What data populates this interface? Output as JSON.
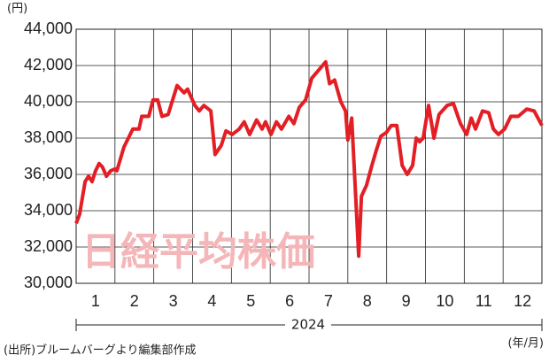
{
  "chart_data": {
    "type": "line",
    "y_label": "(円)",
    "x_label": "2024",
    "x_unit": "(年/月)",
    "source": "(出所)ブルームバーグより編集部作成",
    "annotation": "日経平均株価",
    "grid": true,
    "xlim": [
      0.5,
      12.5
    ],
    "xticks": [
      1,
      2,
      3,
      4,
      5,
      6,
      7,
      8,
      9,
      10,
      11,
      12
    ],
    "ylim": [
      30000,
      44000
    ],
    "yticks": [
      {
        "value": 30000,
        "label": "30,000"
      },
      {
        "value": 32000,
        "label": "32,000"
      },
      {
        "value": 34000,
        "label": "34,000"
      },
      {
        "value": 36000,
        "label": "36,000"
      },
      {
        "value": 38000,
        "label": "38,000"
      },
      {
        "value": 40000,
        "label": "40,000"
      },
      {
        "value": 42000,
        "label": "42,000"
      },
      {
        "value": 44000,
        "label": "44,000"
      }
    ],
    "x": [
      0.5,
      0.59,
      0.73,
      0.82,
      0.91,
      1.0,
      1.09,
      1.18,
      1.28,
      1.39,
      1.5,
      1.55,
      1.73,
      1.96,
      2.12,
      2.19,
      2.37,
      2.48,
      2.6,
      2.71,
      2.87,
      3.1,
      3.28,
      3.37,
      3.56,
      3.67,
      3.79,
      3.97,
      4.08,
      4.24,
      4.36,
      4.52,
      4.7,
      4.83,
      4.97,
      5.15,
      5.29,
      5.38,
      5.52,
      5.66,
      5.79,
      5.98,
      6.11,
      6.25,
      6.41,
      6.57,
      6.93,
      7.03,
      7.16,
      7.32,
      7.44,
      7.5,
      7.6,
      7.78,
      7.85,
      7.98,
      8.12,
      8.23,
      8.35,
      8.49,
      8.62,
      8.76,
      8.9,
      9.03,
      9.17,
      9.26,
      9.35,
      9.44,
      9.58,
      9.72,
      9.85,
      10.06,
      10.22,
      10.4,
      10.56,
      10.68,
      10.79,
      10.97,
      11.13,
      11.25,
      11.38,
      11.54,
      11.7,
      11.89,
      12.11,
      12.3,
      12.5
    ],
    "series": [
      {
        "color": "#e31e24",
        "values": [
          33300,
          33800,
          35600,
          35900,
          35600,
          36200,
          36600,
          36400,
          35900,
          36200,
          36300,
          36200,
          37500,
          38500,
          38500,
          39200,
          39200,
          40100,
          40100,
          39200,
          39300,
          40900,
          40500,
          40700,
          39800,
          39500,
          39800,
          39500,
          37100,
          37600,
          38400,
          38200,
          38500,
          38900,
          38200,
          39000,
          38500,
          38900,
          38200,
          38900,
          38500,
          39200,
          38800,
          39700,
          40100,
          41300,
          42200,
          41000,
          41200,
          40000,
          39500,
          37900,
          39100,
          31500,
          34800,
          35400,
          36500,
          37300,
          38100,
          38300,
          38700,
          38700,
          36500,
          36000,
          36500,
          38000,
          37800,
          38000,
          39800,
          38000,
          39300,
          39800,
          39900,
          38800,
          38200,
          39100,
          38500,
          39500,
          39400,
          38500,
          38200,
          38500,
          39200,
          39200,
          39600,
          39500,
          38700
        ]
      }
    ]
  }
}
